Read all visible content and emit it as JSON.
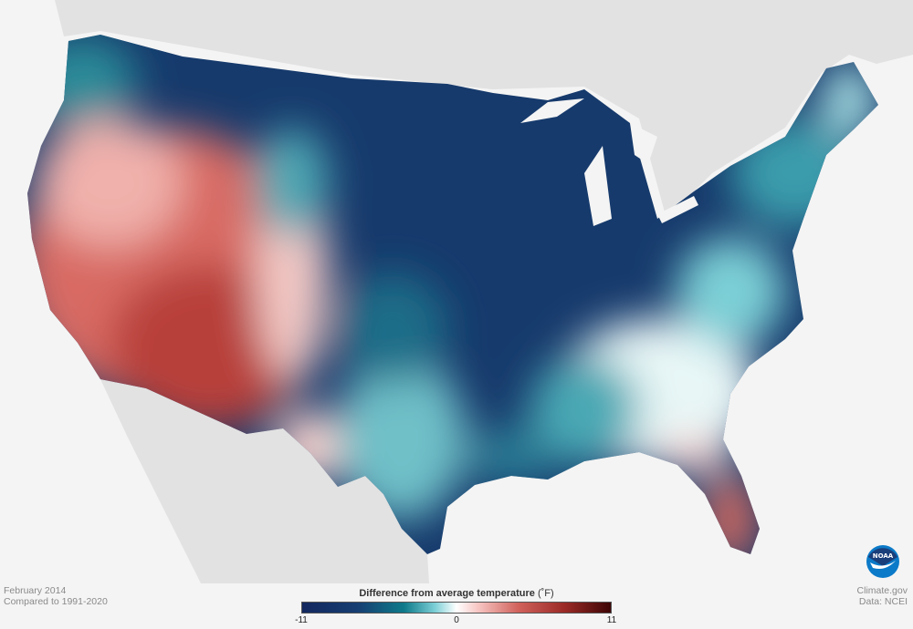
{
  "caption": {
    "date": "February 2014",
    "baseline": "Compared to 1991-2020"
  },
  "credits": {
    "site": "Climate.gov",
    "source": "Data: NCEI"
  },
  "legend": {
    "title": "Difference from average temperature",
    "unit": "(˚F)",
    "min": "-11",
    "mid": "0",
    "max": "11",
    "colors": {
      "cold": "#13285e",
      "cool": "#0e7a8a",
      "neutral": "#ffffff",
      "warm": "#d1625c",
      "hot": "#3d0505"
    }
  },
  "logo": {
    "text": "NOAA",
    "color": "#1a3e7a"
  }
}
